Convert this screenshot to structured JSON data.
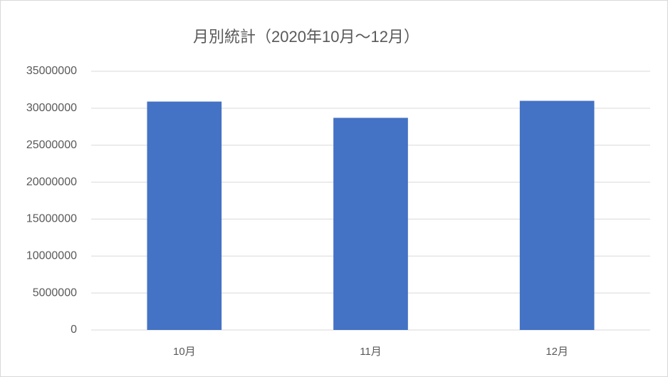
{
  "chart_data": {
    "type": "bar",
    "title": "月別統計（2020年10月～12月）",
    "categories": [
      "10月",
      "11月",
      "12月"
    ],
    "values": [
      30900000,
      28700000,
      31000000
    ],
    "color": "#4472c4",
    "ylim": [
      0,
      35000000
    ],
    "yticks": [
      0,
      5000000,
      10000000,
      15000000,
      20000000,
      25000000,
      30000000,
      35000000
    ],
    "grid": true
  }
}
